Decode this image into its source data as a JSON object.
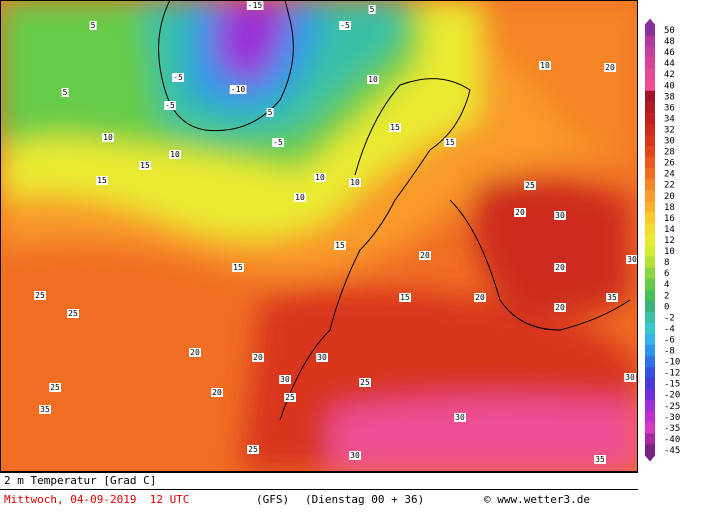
{
  "colorbar": {
    "levels": [
      50,
      48,
      46,
      44,
      42,
      40,
      38,
      36,
      34,
      32,
      30,
      28,
      26,
      24,
      22,
      20,
      18,
      16,
      14,
      12,
      10,
      8,
      6,
      4,
      2,
      0,
      -2,
      -4,
      -6,
      -8,
      -10,
      -12,
      -15,
      -20,
      -25,
      -30,
      -35,
      -40,
      -45
    ],
    "colors": [
      "#8a2f9a",
      "#b0389e",
      "#c83fa0",
      "#d9449a",
      "#e44a98",
      "#ee4f94",
      "#a0142a",
      "#b01a24",
      "#c0201f",
      "#cc2a1e",
      "#d8361c",
      "#e2461c",
      "#ea5a1f",
      "#f06e24",
      "#f58428",
      "#f99a2a",
      "#fbb02c",
      "#fbc82e",
      "#f6dc30",
      "#eaea32",
      "#d4ec34",
      "#b0e23a",
      "#8ad640",
      "#66cc48",
      "#48c05a",
      "#3ab478",
      "#38c0a8",
      "#36c8d0",
      "#34b4e8",
      "#3094ec",
      "#3070e8",
      "#3450e0",
      "#4838d8",
      "#7030d8",
      "#9a30d8",
      "#c030d0",
      "#d838c0",
      "#a828a0",
      "#7a2080"
    ]
  },
  "map_labels": [
    -15,
    -5,
    -5,
    -10,
    -5,
    -5,
    5,
    5,
    5,
    5,
    10,
    10,
    10,
    10,
    10,
    15,
    15,
    15,
    15,
    15,
    15,
    20,
    20,
    20,
    20,
    20,
    20,
    25,
    25,
    25,
    25,
    25,
    25,
    30,
    30,
    30,
    30,
    30,
    30,
    35,
    35,
    35,
    20,
    15,
    25,
    20,
    10,
    10,
    20,
    30
  ],
  "footer": {
    "variable": "2 m Temperatur [Grad C]",
    "date": "Mittwoch, 04-09-2019  12 UTC",
    "model": "(GFS)",
    "run": "(Dienstag 00 + 36)",
    "credit": "© www.wetter3.de"
  }
}
